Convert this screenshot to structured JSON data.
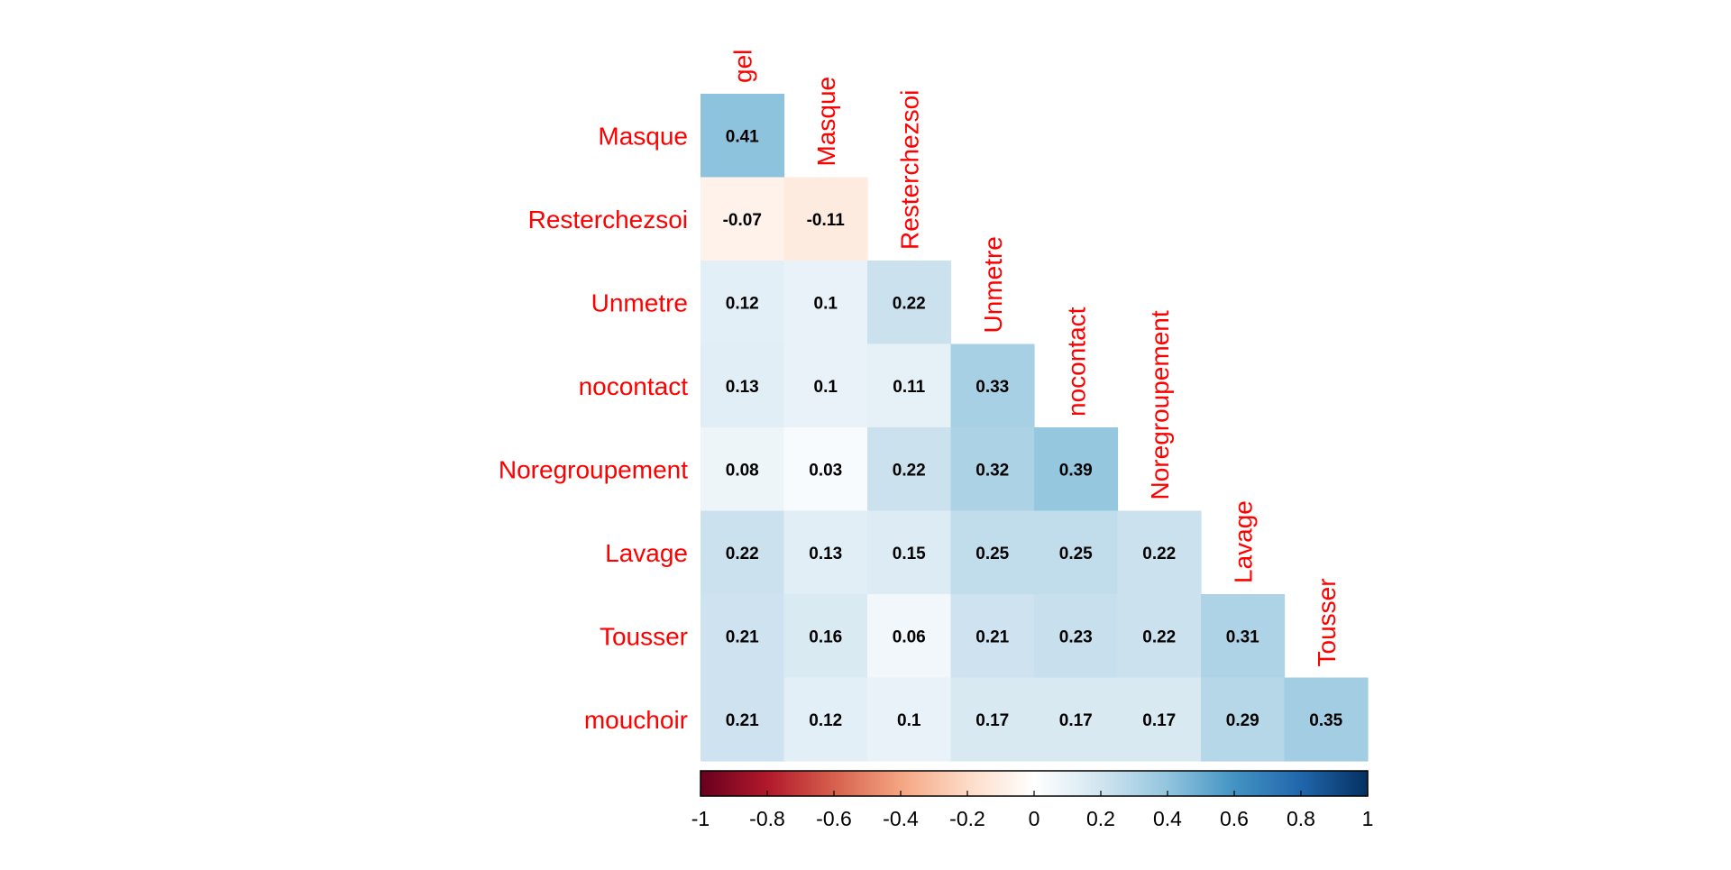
{
  "chart_data": {
    "type": "heatmap",
    "layout": "lower-triangular correlation matrix",
    "title": "",
    "row_labels": [
      "Masque",
      "Resterchezsoi",
      "Unmetre",
      "nocontact",
      "Noregroupement",
      "Lavage",
      "Tousser",
      "mouchoir"
    ],
    "col_labels": [
      "gel",
      "Masque",
      "Resterchezsoi",
      "Unmetre",
      "nocontact",
      "Noregroupement",
      "Lavage",
      "Tousser"
    ],
    "values": [
      [
        0.41
      ],
      [
        -0.07,
        -0.11
      ],
      [
        0.12,
        0.1,
        0.22
      ],
      [
        0.13,
        0.1,
        0.11,
        0.33
      ],
      [
        0.08,
        0.03,
        0.22,
        0.32,
        0.39
      ],
      [
        0.22,
        0.13,
        0.15,
        0.25,
        0.25,
        0.22
      ],
      [
        0.21,
        0.16,
        0.06,
        0.21,
        0.23,
        0.22,
        0.31
      ],
      [
        0.21,
        0.12,
        0.1,
        0.17,
        0.17,
        0.17,
        0.29,
        0.35
      ]
    ],
    "value_labels": [
      [
        "0.41"
      ],
      [
        "-0.07",
        "-0.11"
      ],
      [
        "0.12",
        "0.1",
        "0.22"
      ],
      [
        "0.13",
        "0.1",
        "0.11",
        "0.33"
      ],
      [
        "0.08",
        "0.03",
        "0.22",
        "0.32",
        "0.39"
      ],
      [
        "0.22",
        "0.13",
        "0.15",
        "0.25",
        "0.25",
        "0.22"
      ],
      [
        "0.21",
        "0.16",
        "0.06",
        "0.21",
        "0.23",
        "0.22",
        "0.31"
      ],
      [
        "0.21",
        "0.12",
        "0.1",
        "0.17",
        "0.17",
        "0.17",
        "0.29",
        "0.35"
      ]
    ],
    "color_scale": {
      "range": [
        -1,
        1
      ],
      "ticks": [
        "-1",
        "-0.8",
        "-0.6",
        "-0.4",
        "-0.2",
        "0",
        "0.2",
        "0.4",
        "0.6",
        "0.8",
        "1"
      ],
      "stops": [
        "#67001F",
        "#B2182B",
        "#D6604D",
        "#F4A582",
        "#FDDBC7",
        "#FFFFFF",
        "#D1E5F0",
        "#92C5DE",
        "#4393C3",
        "#2166AC",
        "#053061"
      ],
      "position": "bottom"
    },
    "label_color": "#FF0000"
  }
}
